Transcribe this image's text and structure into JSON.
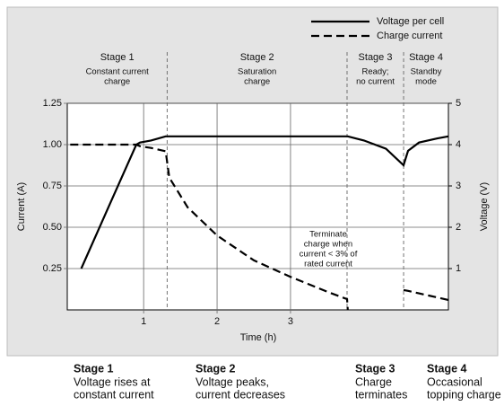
{
  "chart_data": {
    "type": "line",
    "legend": [
      "Voltage per cell",
      "Charge current"
    ],
    "stages": [
      {
        "name": "Stage 1",
        "lines": [
          "Constant current",
          "charge"
        ]
      },
      {
        "name": "Stage 2",
        "lines": [
          "Saturation",
          "charge"
        ]
      },
      {
        "name": "Stage 3",
        "lines": [
          "Ready;",
          "no current"
        ]
      },
      {
        "name": "Stage 4",
        "lines": [
          "Standby",
          "mode"
        ]
      }
    ],
    "stage_boundaries": [
      1.32,
      3.77,
      4.54
    ],
    "annotation": [
      "Terminate",
      "charge when",
      "current < 3% of",
      "rated current"
    ],
    "x_label": "Time (h)",
    "y_label": "Current (A)",
    "y2_label": "Voltage (V)",
    "x": [
      0,
      0.15,
      0.5,
      0.9,
      0.95,
      1.1,
      1.3,
      1.35,
      1.6,
      2,
      2.5,
      3,
      3.5,
      3.77,
      3.78,
      4.0,
      4.3,
      4.54,
      4.6,
      4.75,
      5.0,
      5.15
    ],
    "series": [
      {
        "name": "Voltage per cell",
        "color": "#000000",
        "dash": "solid",
        "axis": "y2",
        "values": [
          null,
          1.0,
          2.4,
          4.0,
          4.05,
          4.1,
          4.2,
          4.2,
          4.2,
          4.2,
          4.2,
          4.2,
          4.2,
          4.2,
          4.2,
          4.1,
          3.9,
          3.5,
          3.85,
          4.05,
          4.15,
          4.2
        ]
      },
      {
        "name": "Charge current",
        "color": "#000000",
        "dash": "dashed",
        "values": [
          1.0,
          1.0,
          1.0,
          1.0,
          0.99,
          0.98,
          0.96,
          0.8,
          0.62,
          0.45,
          0.3,
          0.2,
          0.11,
          0.065,
          0,
          null,
          null,
          0.12,
          0.115,
          0.1,
          0.075,
          0.06
        ]
      }
    ],
    "xlim": [
      -0.04,
      5.15
    ],
    "xticks": [
      1,
      2,
      3
    ],
    "ylim": [
      0,
      1.25
    ],
    "yticks": [
      0.25,
      {
        "value": 0.5,
        "label": "0.50"
      },
      0.75,
      {
        "value": 1.0,
        "label": "1.00"
      },
      1.25
    ],
    "y2lim": [
      0,
      5
    ],
    "y2ticks": [
      1,
      2,
      3,
      4,
      5
    ],
    "grid": true,
    "captions": [
      {
        "title": "Stage 1",
        "lines": [
          "Voltage rises at",
          "constant current"
        ]
      },
      {
        "title": "Stage 2",
        "lines": [
          "Voltage peaks,",
          "current decreases"
        ]
      },
      {
        "title": "Stage 3",
        "lines": [
          "Charge",
          "terminates"
        ]
      },
      {
        "title": "Stage 4",
        "lines": [
          "Occasional",
          "topping charge"
        ]
      }
    ]
  }
}
